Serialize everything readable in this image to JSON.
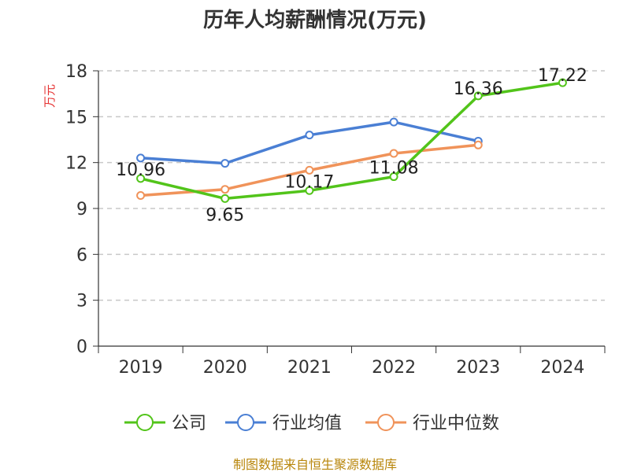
{
  "chart_data": {
    "type": "line",
    "title": "历年人均薪酬情况(万元)",
    "ylabel": "万元",
    "xlabel": "",
    "categories": [
      "2019",
      "2020",
      "2021",
      "2022",
      "2023",
      "2024"
    ],
    "ylim": [
      0,
      18
    ],
    "yticks": [
      0,
      3,
      6,
      9,
      12,
      15,
      18
    ],
    "grid": true,
    "legend_position": "bottom",
    "series": [
      {
        "name": "公司",
        "color": "#52c41a",
        "values": [
          10.96,
          9.65,
          10.17,
          11.08,
          16.36,
          17.22
        ],
        "labels": [
          "10.96",
          "9.65",
          "10.17",
          "11.08",
          "16.36",
          "17.22"
        ]
      },
      {
        "name": "行业均值",
        "color": "#4a7fd4",
        "values": [
          12.3,
          11.95,
          13.8,
          14.65,
          13.4,
          null
        ],
        "labels": []
      },
      {
        "name": "行业中位数",
        "color": "#f0935a",
        "values": [
          9.85,
          10.25,
          11.5,
          12.6,
          13.15,
          null
        ],
        "labels": []
      }
    ]
  },
  "source": "制图数据来自恒生聚源数据库"
}
